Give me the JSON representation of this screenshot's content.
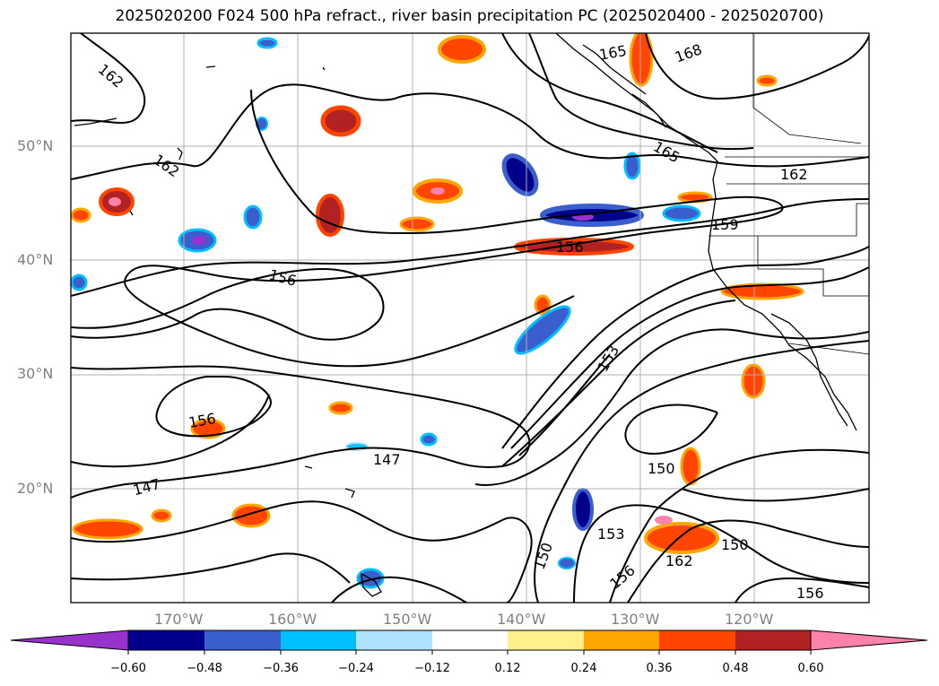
{
  "title": "2025020200 F024 500 hPa refract., river basin precipitation PC (2025020400 - 2025020700)",
  "map": {
    "lat_labels": [
      "50°N",
      "40°N",
      "30°N",
      "20°N"
    ],
    "lon_labels": [
      "170°W",
      "160°W",
      "150°W",
      "140°W",
      "130°W",
      "120°W"
    ],
    "contour_labels": [
      "162",
      "165",
      "168",
      "165",
      "162",
      "159",
      "156",
      "156",
      "162",
      "153",
      "156",
      "147",
      "147",
      "150",
      "153",
      "150",
      "150",
      "156",
      "162",
      "156"
    ],
    "grid": true,
    "colors": {
      "contour": "#000000",
      "grid": "#b0b0b0",
      "coast": "#000000"
    }
  },
  "colorbar": {
    "ticks": [
      "−0.60",
      "−0.48",
      "−0.36",
      "−0.24",
      "−0.12",
      "0.12",
      "0.24",
      "0.36",
      "0.48",
      "0.60"
    ],
    "colors": [
      "#9932cc",
      "#00008b",
      "#3a5fcd",
      "#00bfff",
      "#b0e2ff",
      "#ffffff",
      "#fff08c",
      "#ffa500",
      "#ff4500",
      "#b22222",
      "#ff82ab"
    ],
    "extend": "both"
  }
}
